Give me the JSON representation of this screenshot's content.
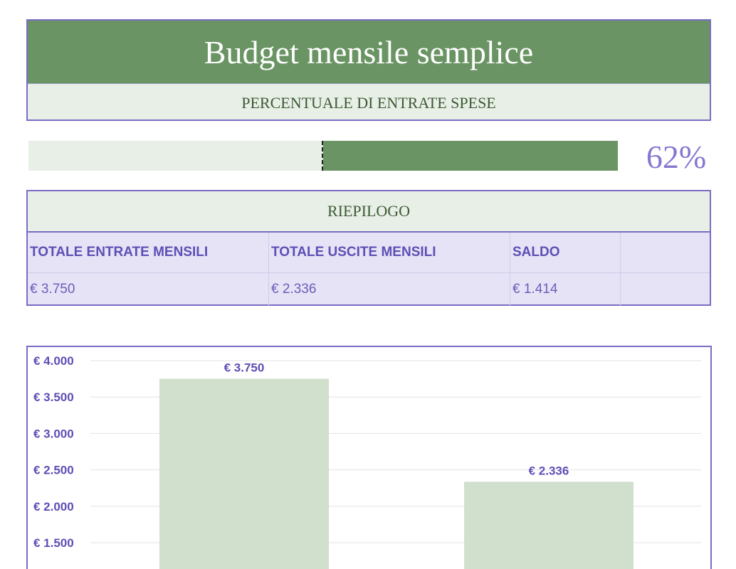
{
  "header": {
    "title": "Budget mensile semplice",
    "subtitle": "PERCENTUALE DI ENTRATE SPESE"
  },
  "progress": {
    "percent_label": "62%",
    "fill_start_fraction": 0.5,
    "fill_end_fraction": 1.0
  },
  "summary": {
    "title": "RIEPILOGO",
    "columns": [
      "TOTALE ENTRATE MENSILI",
      "TOTALE USCITE MENSILI",
      "SALDO",
      ""
    ],
    "values": [
      "€ 3.750",
      "€ 2.336",
      "€ 1.414",
      ""
    ]
  },
  "colors": {
    "brand_green": "#6a9463",
    "light_green": "#e8efe6",
    "accent_purple": "#7a6cc4",
    "bar_fill": "#d1dfcd"
  },
  "chart_data": {
    "type": "bar",
    "categories": [
      "",
      ""
    ],
    "values": [
      3750,
      2336
    ],
    "data_labels": [
      "€ 3.750",
      "€ 2.336"
    ],
    "ylim": [
      0,
      4000
    ],
    "yticks": [
      1500,
      2000,
      2500,
      3000,
      3500,
      4000
    ],
    "ytick_labels": [
      "€ 1.500",
      "€ 2.000",
      "€ 2.500",
      "€ 3.000",
      "€ 3.500",
      "€ 4.000"
    ],
    "grid": true
  }
}
